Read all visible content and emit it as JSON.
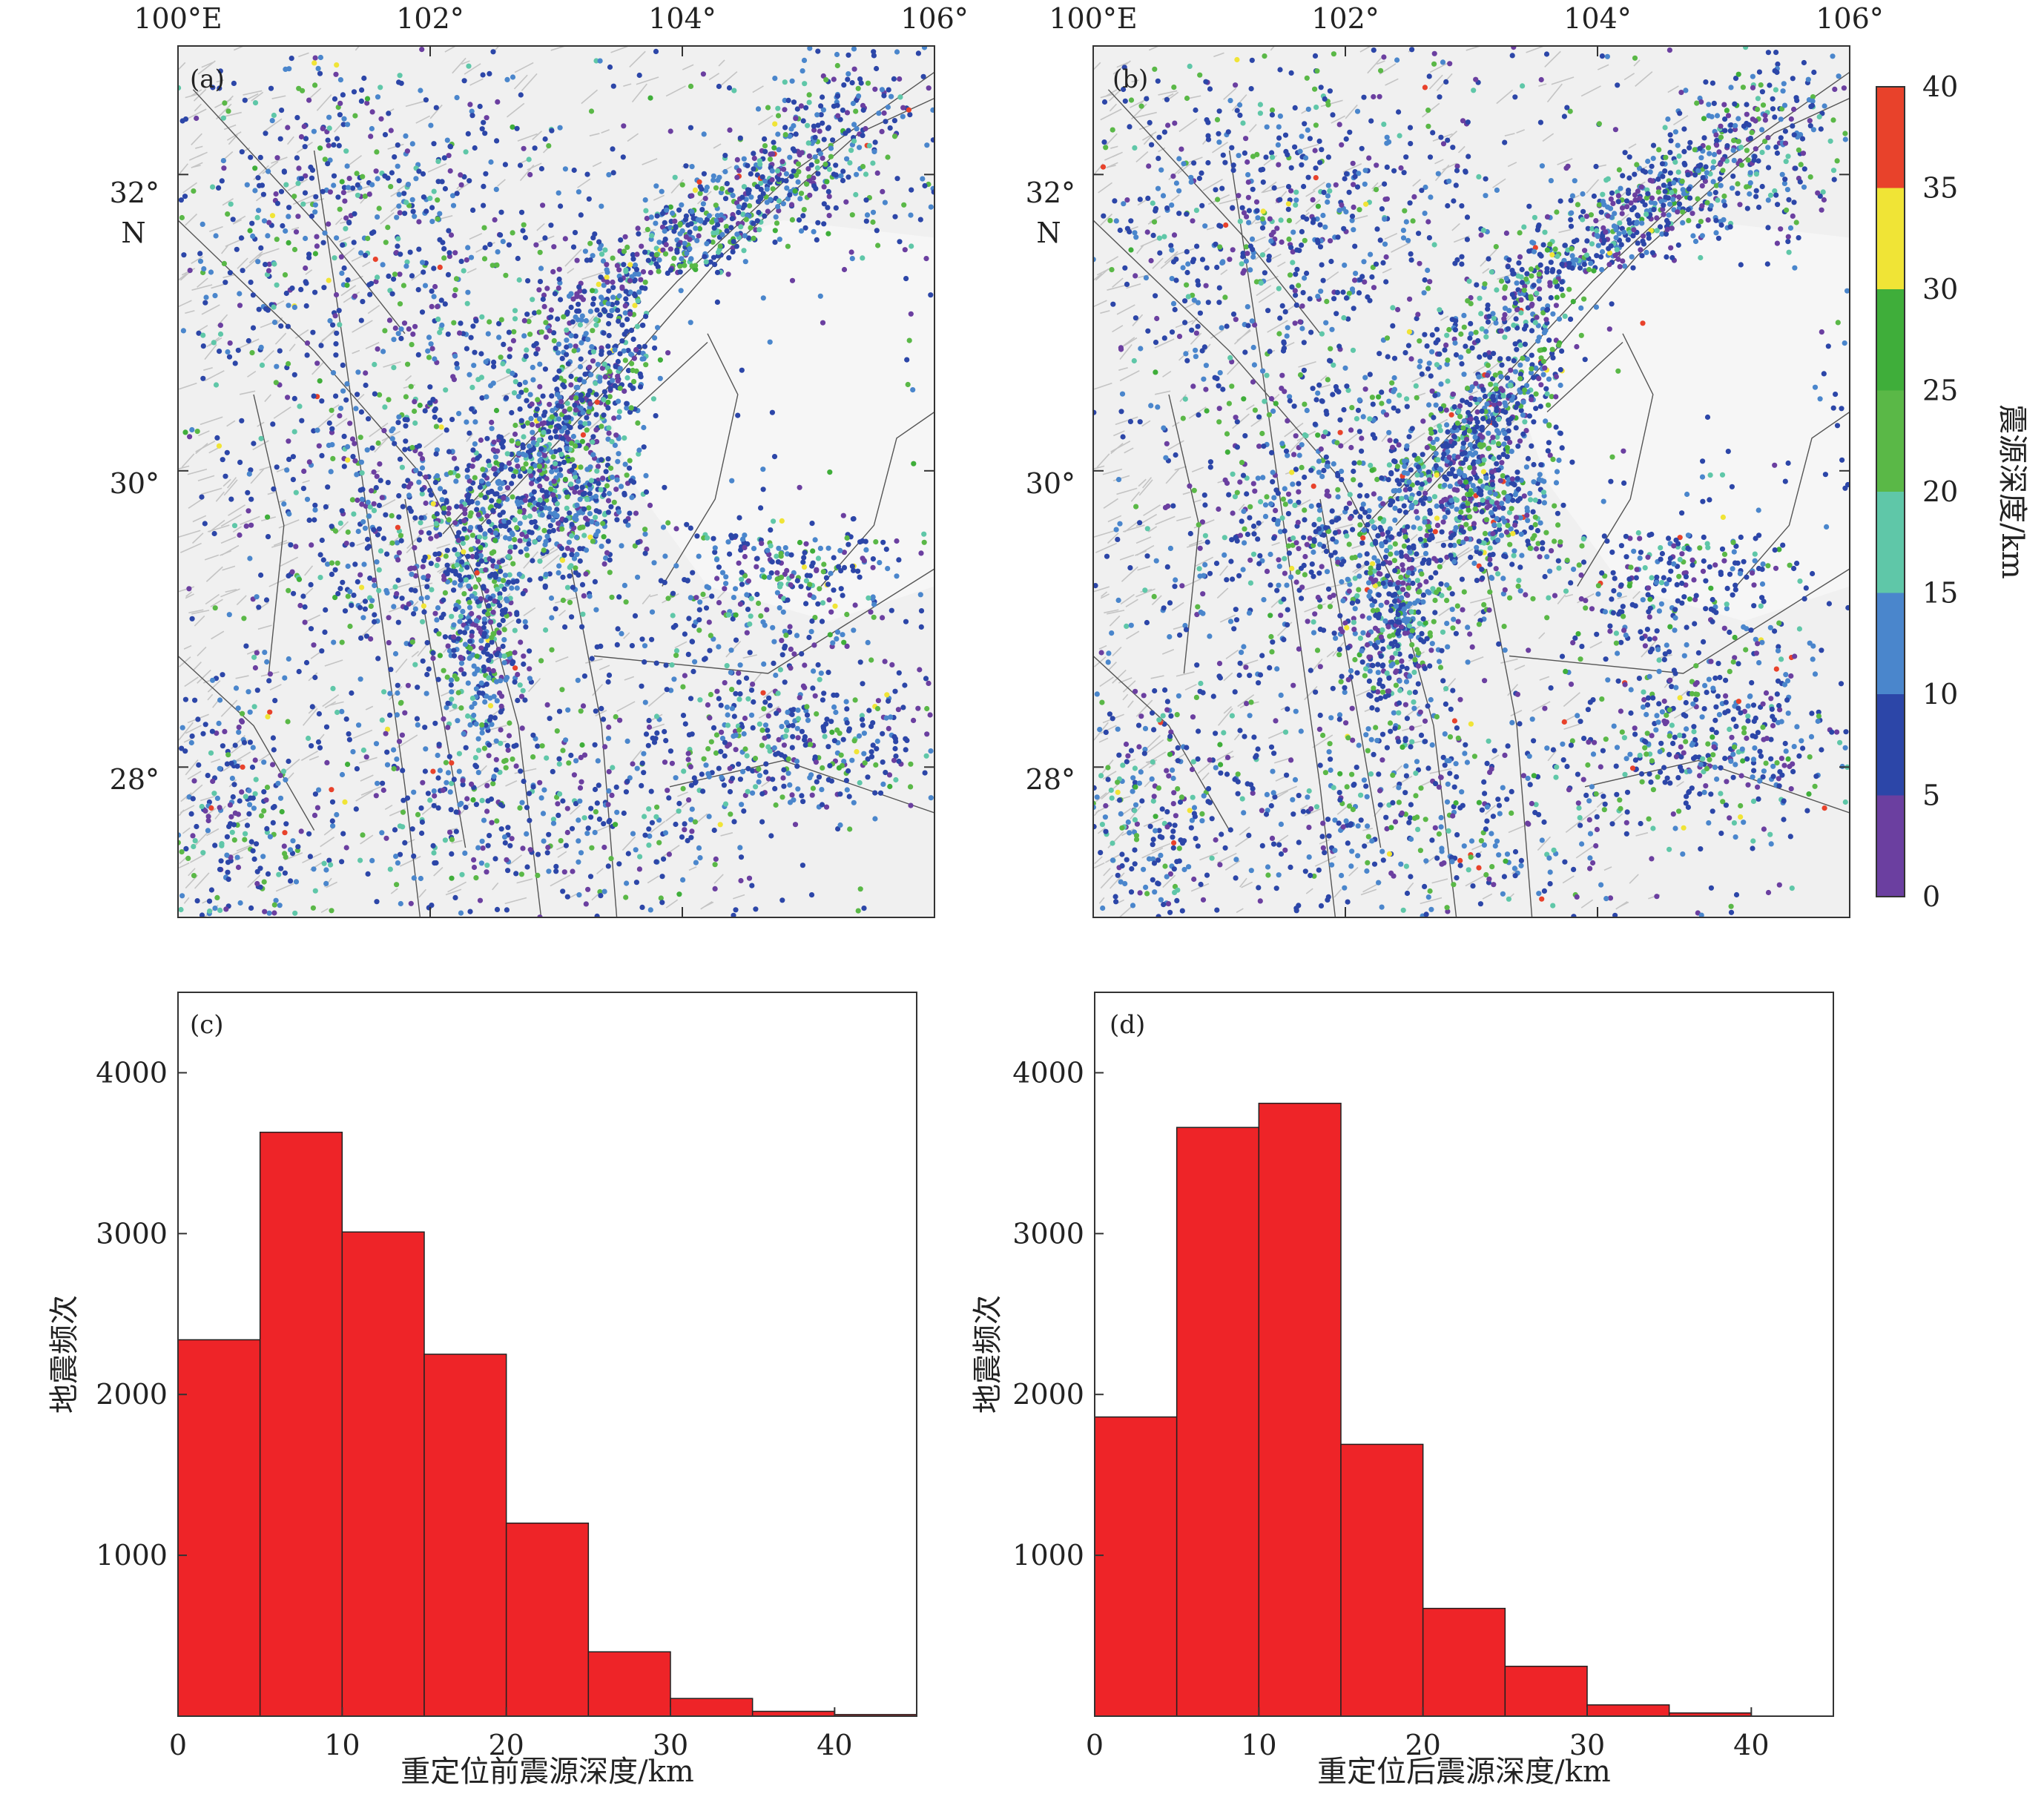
{
  "maps": {
    "lon_ticks": [
      "100°E",
      "102°",
      "104°",
      "106°"
    ],
    "lat_ticks_a": [
      "32°",
      "30°",
      "28°"
    ],
    "lat_ticks_b": [
      "32°",
      "30°",
      "28°"
    ],
    "lat_unit": "N",
    "lon_range": [
      100,
      106
    ],
    "lat_range": [
      27,
      33
    ],
    "panel_a": {
      "label": "(a)"
    },
    "panel_b": {
      "label": "(b)"
    }
  },
  "colorbar": {
    "title": "震源深度/km",
    "ticks": [
      "40",
      "35",
      "30",
      "25",
      "20",
      "15",
      "10",
      "5",
      "0"
    ],
    "bins": [
      {
        "from": 0,
        "to": 5,
        "color": "#6b3fa0"
      },
      {
        "from": 5,
        "to": 10,
        "color": "#2c46a8"
      },
      {
        "from": 10,
        "to": 15,
        "color": "#4a86cc"
      },
      {
        "from": 15,
        "to": 20,
        "color": "#5fc7a8"
      },
      {
        "from": 20,
        "to": 25,
        "color": "#5ab847"
      },
      {
        "from": 25,
        "to": 30,
        "color": "#3fae3a"
      },
      {
        "from": 30,
        "to": 35,
        "color": "#f0e436"
      },
      {
        "from": 35,
        "to": 40,
        "color": "#e8422b"
      }
    ]
  },
  "chart_data": [
    {
      "type": "bar",
      "panel": "(c)",
      "xlabel": "重定位前震源深度/km",
      "ylabel": "地震频次",
      "bin_edges": [
        0,
        5,
        10,
        15,
        20,
        25,
        30,
        35,
        40,
        45
      ],
      "values": [
        2340,
        3630,
        3010,
        2250,
        1200,
        400,
        110,
        30,
        10
      ],
      "xlim": [
        0,
        45
      ],
      "ylim": [
        0,
        4500
      ],
      "xticks": [
        "0",
        "10",
        "20",
        "30",
        "40"
      ],
      "yticks": [
        "1000",
        "2000",
        "3000",
        "4000"
      ],
      "bar_color": "#ee2428"
    },
    {
      "type": "bar",
      "panel": "(d)",
      "xlabel": "重定位后震源深度/km",
      "ylabel": "地震频次",
      "bin_edges": [
        0,
        5,
        10,
        15,
        20,
        25,
        30,
        35,
        40,
        45
      ],
      "values": [
        1860,
        3660,
        3810,
        1690,
        670,
        310,
        70,
        20,
        0
      ],
      "xlim": [
        0,
        45
      ],
      "ylim": [
        0,
        4500
      ],
      "xticks": [
        "0",
        "10",
        "20",
        "30",
        "40"
      ],
      "yticks": [
        "1000",
        "2000",
        "3000",
        "4000"
      ],
      "bar_color": "#ee2428"
    }
  ]
}
